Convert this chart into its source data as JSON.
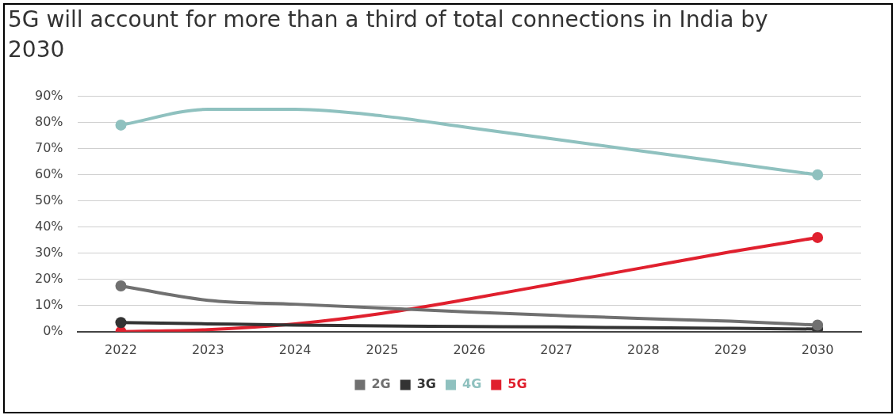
{
  "chart_data": {
    "type": "line",
    "title": "5G will account for more than a third of total connections in India by 2030",
    "categories": [
      "2022",
      "2023",
      "2024",
      "2025",
      "2026",
      "2027",
      "2028",
      "2029",
      "2030"
    ],
    "ylim": [
      0,
      90
    ],
    "yticks": [
      {
        "value": 0,
        "label": "0%"
      },
      {
        "value": 10,
        "label": "10%"
      },
      {
        "value": 20,
        "label": "20%"
      },
      {
        "value": 30,
        "label": "30%"
      },
      {
        "value": 40,
        "label": "40%"
      },
      {
        "value": 50,
        "label": "50%"
      },
      {
        "value": 60,
        "label": "60%"
      },
      {
        "value": 70,
        "label": "70%"
      },
      {
        "value": 80,
        "label": "80%"
      },
      {
        "value": 90,
        "label": "90%"
      }
    ],
    "grid": "y",
    "legend": "bottom",
    "line_style": "solid",
    "series": [
      {
        "name": "2G",
        "color": "#707070",
        "values": [
          17.5,
          12,
          10.5,
          9,
          7.5,
          6.2,
          5,
          4,
          2.5
        ]
      },
      {
        "name": "3G",
        "color": "#333333",
        "values": [
          3.5,
          3,
          2.5,
          2.2,
          2,
          1.8,
          1.5,
          1.3,
          1
        ]
      },
      {
        "name": "4G",
        "color": "#8fc1bf",
        "values": [
          79,
          85,
          85,
          82.5,
          78,
          73.5,
          69,
          64.5,
          60
        ]
      },
      {
        "name": "5G",
        "color": "#e0202e",
        "values": [
          0,
          0.8,
          3,
          7,
          12.5,
          18.5,
          24.5,
          30.5,
          36
        ]
      }
    ]
  }
}
